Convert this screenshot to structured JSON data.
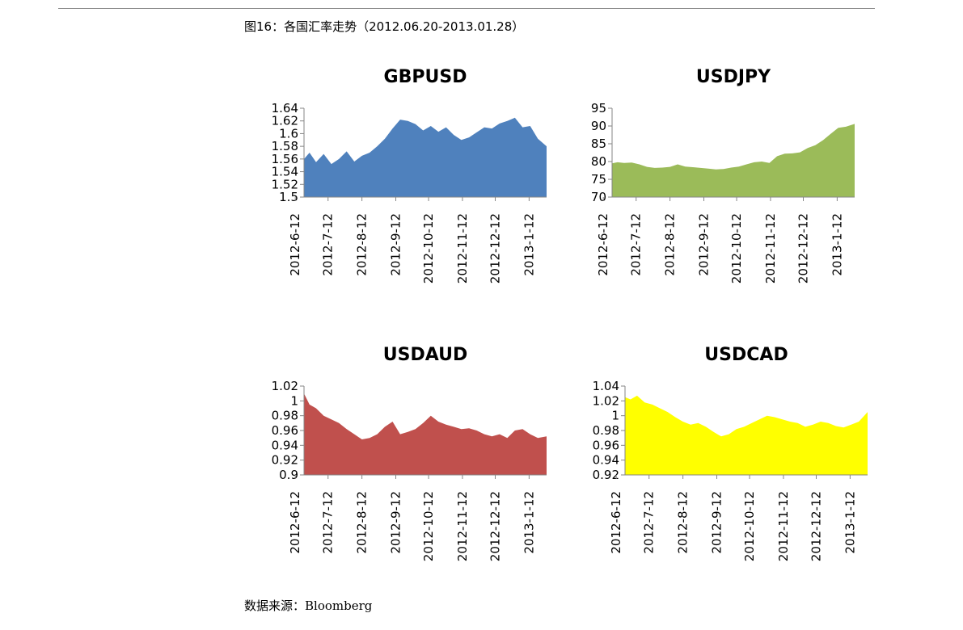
{
  "caption": "图16：各国汇率走势（2012.06.20-2013.01.28）",
  "source": {
    "prefix": "数据来源：",
    "name": "Bloomberg"
  },
  "x_labels": [
    "2012-6-12",
    "2012-7-12",
    "2012-8-12",
    "2012-9-12",
    "2012-10-12",
    "2012-11-12",
    "2012-12-12",
    "2013-1-12"
  ],
  "chart_data": [
    {
      "type": "area",
      "title": "GBPUSD",
      "color": "#4F81BD",
      "ylim": [
        1.5,
        1.64
      ],
      "yticks": [
        "1.5",
        "1.52",
        "1.54",
        "1.56",
        "1.58",
        "1.6",
        "1.62",
        "1.64"
      ],
      "x": [
        "2012-06-20",
        "2012-06-25",
        "2012-07-01",
        "2012-07-08",
        "2012-07-15",
        "2012-07-22",
        "2012-07-29",
        "2012-08-05",
        "2012-08-12",
        "2012-08-19",
        "2012-08-26",
        "2012-09-02",
        "2012-09-09",
        "2012-09-16",
        "2012-09-23",
        "2012-09-30",
        "2012-10-07",
        "2012-10-14",
        "2012-10-21",
        "2012-10-28",
        "2012-11-04",
        "2012-11-11",
        "2012-11-18",
        "2012-11-25",
        "2012-12-02",
        "2012-12-09",
        "2012-12-16",
        "2012-12-23",
        "2012-12-30",
        "2013-01-06",
        "2013-01-13",
        "2013-01-20",
        "2013-01-28"
      ],
      "values": [
        1.56,
        1.57,
        1.555,
        1.568,
        1.552,
        1.56,
        1.572,
        1.556,
        1.565,
        1.57,
        1.58,
        1.592,
        1.608,
        1.622,
        1.62,
        1.615,
        1.605,
        1.612,
        1.603,
        1.61,
        1.598,
        1.59,
        1.594,
        1.602,
        1.61,
        1.608,
        1.616,
        1.62,
        1.625,
        1.61,
        1.612,
        1.592,
        1.58
      ]
    },
    {
      "type": "area",
      "title": "USDJPY",
      "color": "#9BBB59",
      "ylim": [
        70,
        95
      ],
      "yticks": [
        "70",
        "75",
        "80",
        "85",
        "90",
        "95"
      ],
      "x": [
        "2012-06-20",
        "2012-06-25",
        "2012-07-01",
        "2012-07-08",
        "2012-07-15",
        "2012-07-22",
        "2012-07-29",
        "2012-08-05",
        "2012-08-12",
        "2012-08-19",
        "2012-08-26",
        "2012-09-02",
        "2012-09-09",
        "2012-09-16",
        "2012-09-23",
        "2012-09-30",
        "2012-10-07",
        "2012-10-14",
        "2012-10-21",
        "2012-10-28",
        "2012-11-04",
        "2012-11-11",
        "2012-11-18",
        "2012-11-25",
        "2012-12-02",
        "2012-12-09",
        "2012-12-16",
        "2012-12-23",
        "2012-12-30",
        "2013-01-06",
        "2013-01-13",
        "2013-01-20",
        "2013-01-28"
      ],
      "values": [
        79.5,
        79.8,
        79.6,
        79.7,
        79.2,
        78.5,
        78.2,
        78.3,
        78.5,
        79.2,
        78.6,
        78.4,
        78.2,
        78.0,
        77.8,
        77.9,
        78.3,
        78.6,
        79.2,
        79.8,
        80.0,
        79.6,
        81.5,
        82.2,
        82.3,
        82.6,
        83.8,
        84.6,
        86.0,
        87.8,
        89.5,
        89.8,
        90.6
      ]
    },
    {
      "type": "area",
      "title": "USDAUD",
      "color": "#C0504D",
      "ylim": [
        0.9,
        1.02
      ],
      "yticks": [
        "0.9",
        "0.92",
        "0.94",
        "0.96",
        "0.98",
        "1",
        "1.02"
      ],
      "x": [
        "2012-06-20",
        "2012-06-25",
        "2012-07-01",
        "2012-07-08",
        "2012-07-15",
        "2012-07-22",
        "2012-07-29",
        "2012-08-05",
        "2012-08-12",
        "2012-08-19",
        "2012-08-26",
        "2012-09-02",
        "2012-09-09",
        "2012-09-16",
        "2012-09-23",
        "2012-09-30",
        "2012-10-07",
        "2012-10-14",
        "2012-10-21",
        "2012-10-28",
        "2012-11-04",
        "2012-11-11",
        "2012-11-18",
        "2012-11-25",
        "2012-12-02",
        "2012-12-09",
        "2012-12-16",
        "2012-12-23",
        "2012-12-30",
        "2013-01-06",
        "2013-01-13",
        "2013-01-20",
        "2013-01-28"
      ],
      "values": [
        1.01,
        0.995,
        0.99,
        0.98,
        0.975,
        0.97,
        0.962,
        0.955,
        0.948,
        0.95,
        0.955,
        0.965,
        0.972,
        0.955,
        0.958,
        0.962,
        0.97,
        0.98,
        0.972,
        0.968,
        0.965,
        0.962,
        0.963,
        0.96,
        0.955,
        0.952,
        0.955,
        0.95,
        0.96,
        0.962,
        0.955,
        0.95,
        0.952
      ]
    },
    {
      "type": "area",
      "title": "USDCAD",
      "color": "#FFFF00",
      "ylim": [
        0.92,
        1.04
      ],
      "yticks": [
        "0.92",
        "0.94",
        "0.96",
        "0.98",
        "1",
        "1.02",
        "1.04"
      ],
      "x": [
        "2012-06-20",
        "2012-06-25",
        "2012-07-01",
        "2012-07-08",
        "2012-07-15",
        "2012-07-22",
        "2012-07-29",
        "2012-08-05",
        "2012-08-12",
        "2012-08-19",
        "2012-08-26",
        "2012-09-02",
        "2012-09-09",
        "2012-09-16",
        "2012-09-23",
        "2012-09-30",
        "2012-10-07",
        "2012-10-14",
        "2012-10-21",
        "2012-10-28",
        "2012-11-04",
        "2012-11-11",
        "2012-11-18",
        "2012-11-25",
        "2012-12-02",
        "2012-12-09",
        "2012-12-16",
        "2012-12-23",
        "2012-12-30",
        "2013-01-06",
        "2013-01-13",
        "2013-01-20",
        "2013-01-28"
      ],
      "values": [
        1.025,
        1.022,
        1.027,
        1.018,
        1.015,
        1.01,
        1.005,
        0.998,
        0.992,
        0.988,
        0.99,
        0.985,
        0.978,
        0.972,
        0.975,
        0.982,
        0.985,
        0.99,
        0.995,
        1.0,
        0.998,
        0.995,
        0.992,
        0.99,
        0.985,
        0.988,
        0.992,
        0.99,
        0.986,
        0.984,
        0.988,
        0.992,
        1.005
      ]
    }
  ]
}
